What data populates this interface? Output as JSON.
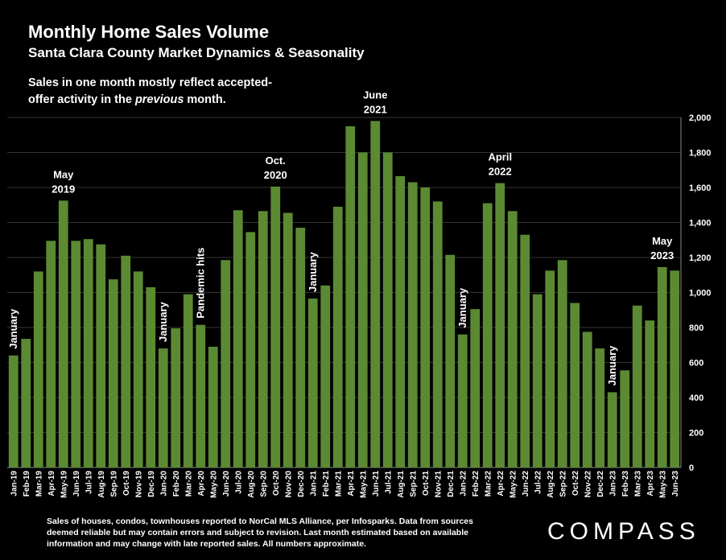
{
  "header": {
    "title": "Monthly Home Sales Volume",
    "subtitle": "Santa Clara County Market Dynamics & Seasonality",
    "note_before": "Sales in one month mostly reflect accepted-offer activity in the ",
    "note_italic": "previous",
    "note_after": " month."
  },
  "footer": {
    "note": "Sales of houses, condos, townhouses reported to NorCal MLS Alliance, per Infosparks. Data from sources deemed reliable but may contain errors and subject to revision. Last month estimated based on available information and may change with late reported sales. All numbers approximate.",
    "logo": "COMPASS"
  },
  "colors": {
    "bar": "#5b8a33",
    "background": "#000000",
    "grid": "#333333",
    "text": "#ffffff"
  },
  "chart_data": {
    "type": "bar",
    "categories": [
      "Jan-19",
      "Feb-19",
      "Mar-19",
      "Apr-19",
      "May-19",
      "Jun-19",
      "Jul-19",
      "Aug-19",
      "Sep-19",
      "Oct-19",
      "Nov-19",
      "Dec-19",
      "Jan-20",
      "Feb-20",
      "Mar-20",
      "Apr-20",
      "May-20",
      "Jun-20",
      "Jul-20",
      "Aug-20",
      "Sep-20",
      "Oct-20",
      "Nov-20",
      "Dec-20",
      "Jan-21",
      "Feb-21",
      "Mar-21",
      "Apr-21",
      "May-21",
      "Jun-21",
      "Jul-21",
      "Aug-21",
      "Sep-21",
      "Oct-21",
      "Nov-21",
      "Dec-21",
      "Jan-22",
      "Feb-22",
      "Mar-22",
      "Apr-22",
      "May-22",
      "Jun-22",
      "Jul-22",
      "Aug-22",
      "Sep-22",
      "Oct-22",
      "Nov-22",
      "Dec-22",
      "Jan-23",
      "Feb-23",
      "Mar-23",
      "Apr-23",
      "May-23",
      "Jun-23"
    ],
    "values": [
      640,
      735,
      1120,
      1295,
      1525,
      1295,
      1305,
      1275,
      1075,
      1210,
      1120,
      1030,
      680,
      795,
      990,
      815,
      690,
      1185,
      1470,
      1345,
      1465,
      1605,
      1455,
      1370,
      965,
      1040,
      1490,
      1950,
      1800,
      1980,
      1800,
      1665,
      1630,
      1600,
      1520,
      1215,
      760,
      905,
      1510,
      1625,
      1465,
      1330,
      990,
      1125,
      1185,
      940,
      775,
      680,
      430,
      555,
      925,
      840,
      1145,
      1125
    ],
    "ylim": [
      0,
      2000
    ],
    "yticks": [
      "0",
      "200",
      "400",
      "600",
      "800",
      "1,000",
      "1,200",
      "1,400",
      "1,600",
      "1,800",
      "2,000"
    ],
    "grid": true,
    "annotations": [
      {
        "index": 0,
        "text": "January",
        "vertical": true
      },
      {
        "index": 4,
        "lines": [
          "May",
          "2019"
        ]
      },
      {
        "index": 12,
        "text": "January",
        "vertical": true
      },
      {
        "index": 15,
        "text": "Pandemic hits",
        "vertical": true
      },
      {
        "index": 21,
        "lines": [
          "Oct.",
          "2020"
        ]
      },
      {
        "index": 24,
        "text": "January",
        "vertical": true
      },
      {
        "index": 29,
        "lines": [
          "June",
          "2021"
        ]
      },
      {
        "index": 36,
        "text": "January",
        "vertical": true
      },
      {
        "index": 39,
        "lines": [
          "April",
          "2022"
        ]
      },
      {
        "index": 48,
        "text": "January",
        "vertical": true
      },
      {
        "index": 52,
        "lines": [
          "May",
          "2023"
        ]
      }
    ]
  }
}
